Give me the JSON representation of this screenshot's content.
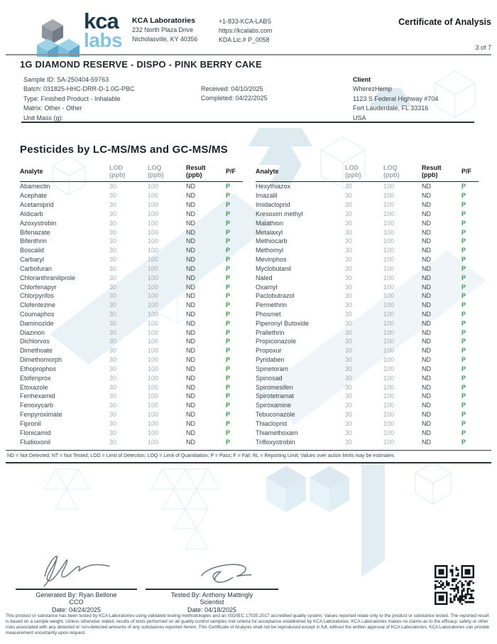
{
  "header": {
    "logo_text_top": "kca",
    "logo_text_bottom": "labs",
    "company_name": "KCA Laboratories",
    "address_line1": "232 North Plaza Drive",
    "address_line2": "Nicholasville, KY 40356",
    "phone": "+1-833-KCA-LABS",
    "website": "https://kcalabs.com",
    "license": "KDA Lic.# P_0058",
    "document_title": "Certificate of Analysis",
    "page_label": "3 of 7"
  },
  "product_title": "1G DIAMOND RESERVE - DISPO - PINK BERRY CAKE",
  "sample_info": {
    "sample_id": "Sample ID: SA-250404-59763",
    "batch": "Batch: 031825-HHC-DRR-D-1.0G-PBC",
    "type": "Type: Finished Product - Inhalable",
    "matrix": "Matrix: Other - Other",
    "unit_mass": "Unit Mass (g):",
    "received": "Received: 04/10/2025",
    "completed": "Completed: 04/22/2025"
  },
  "client": {
    "label": "Client",
    "name": "WherezHemp",
    "address_line1": "1123 S Federal Highway #704",
    "address_line2": "Fort Lauderdale, FL 33316",
    "country": "USA"
  },
  "section_title": "Pesticides by LC-MS/MS and GC-MS/MS",
  "table": {
    "headers": {
      "analyte": "Analyte",
      "lod": "LOD",
      "loq": "LOQ",
      "result": "Result",
      "unit": "(ppb)",
      "pf": "P/F"
    },
    "left_rows": [
      [
        "Abamectin",
        "30",
        "100",
        "ND",
        "P"
      ],
      [
        "Acephate",
        "30",
        "100",
        "ND",
        "P"
      ],
      [
        "Acetamiprid",
        "30",
        "100",
        "ND",
        "P"
      ],
      [
        "Aldicarb",
        "30",
        "100",
        "ND",
        "P"
      ],
      [
        "Azoxystrobin",
        "30",
        "100",
        "ND",
        "P"
      ],
      [
        "Bifenazate",
        "30",
        "100",
        "ND",
        "P"
      ],
      [
        "Bifenthrin",
        "30",
        "100",
        "ND",
        "P"
      ],
      [
        "Boscalid",
        "30",
        "100",
        "ND",
        "P"
      ],
      [
        "Carbaryl",
        "30",
        "100",
        "ND",
        "P"
      ],
      [
        "Carbofuran",
        "30",
        "100",
        "ND",
        "P"
      ],
      [
        "Chloranthraniliprole",
        "30",
        "100",
        "ND",
        "P"
      ],
      [
        "Chlorfenapyr",
        "30",
        "100",
        "ND",
        "P"
      ],
      [
        "Chlorpyrifos",
        "30",
        "100",
        "ND",
        "P"
      ],
      [
        "Clofentezine",
        "30",
        "100",
        "ND",
        "P"
      ],
      [
        "Coumaphos",
        "30",
        "100",
        "ND",
        "P"
      ],
      [
        "Daminozide",
        "30",
        "100",
        "ND",
        "P"
      ],
      [
        "Diazinon",
        "30",
        "100",
        "ND",
        "P"
      ],
      [
        "Dichlorvos",
        "30",
        "100",
        "ND",
        "P"
      ],
      [
        "Dimethoate",
        "30",
        "100",
        "ND",
        "P"
      ],
      [
        "Dimethomorph",
        "30",
        "100",
        "ND",
        "P"
      ],
      [
        "Ethoprophos",
        "30",
        "100",
        "ND",
        "P"
      ],
      [
        "Etofenprox",
        "30",
        "100",
        "ND",
        "P"
      ],
      [
        "Etoxazole",
        "30",
        "100",
        "ND",
        "P"
      ],
      [
        "Fenhexamid",
        "30",
        "100",
        "ND",
        "P"
      ],
      [
        "Fenoxycarb",
        "30",
        "100",
        "ND",
        "P"
      ],
      [
        "Fenpyroximate",
        "30",
        "100",
        "ND",
        "P"
      ],
      [
        "Fipronil",
        "30",
        "100",
        "ND",
        "P"
      ],
      [
        "Flonicamid",
        "30",
        "100",
        "ND",
        "P"
      ],
      [
        "Fludioxonil",
        "30",
        "100",
        "ND",
        "P"
      ]
    ],
    "right_rows": [
      [
        "Hexythiazox",
        "30",
        "100",
        "ND",
        "P"
      ],
      [
        "Imazalil",
        "30",
        "100",
        "ND",
        "P"
      ],
      [
        "Imidacloprid",
        "30",
        "100",
        "ND",
        "P"
      ],
      [
        "Kresoxim methyl",
        "30",
        "100",
        "ND",
        "P"
      ],
      [
        "Malathion",
        "30",
        "100",
        "ND",
        "P"
      ],
      [
        "Metalaxyl",
        "30",
        "100",
        "ND",
        "P"
      ],
      [
        "Methiocarb",
        "30",
        "100",
        "ND",
        "P"
      ],
      [
        "Methomyl",
        "30",
        "100",
        "ND",
        "P"
      ],
      [
        "Mevinphos",
        "30",
        "100",
        "ND",
        "P"
      ],
      [
        "Myclobutanil",
        "30",
        "100",
        "ND",
        "P"
      ],
      [
        "Naled",
        "30",
        "100",
        "ND",
        "P"
      ],
      [
        "Oxamyl",
        "30",
        "100",
        "ND",
        "P"
      ],
      [
        "Paclobutrazol",
        "30",
        "100",
        "ND",
        "P"
      ],
      [
        "Permethrin",
        "30",
        "100",
        "ND",
        "P"
      ],
      [
        "Phosmet",
        "30",
        "100",
        "ND",
        "P"
      ],
      [
        "Piperonyl Butoxide",
        "30",
        "100",
        "ND",
        "P"
      ],
      [
        "Prallethrin",
        "30",
        "100",
        "ND",
        "P"
      ],
      [
        "Propiconazole",
        "30",
        "100",
        "ND",
        "P"
      ],
      [
        "Propoxur",
        "30",
        "100",
        "ND",
        "P"
      ],
      [
        "Pyridaben",
        "30",
        "100",
        "ND",
        "P"
      ],
      [
        "Spinetoram",
        "30",
        "100",
        "ND",
        "P"
      ],
      [
        "Spinosad",
        "30",
        "100",
        "ND",
        "P"
      ],
      [
        "Spiromesifen",
        "30",
        "100",
        "ND",
        "P"
      ],
      [
        "Spirotetramat",
        "30",
        "100",
        "ND",
        "P"
      ],
      [
        "Spiroxamine",
        "30",
        "100",
        "ND",
        "P"
      ],
      [
        "Tebuconazole",
        "30",
        "100",
        "ND",
        "P"
      ],
      [
        "Thiacloprid",
        "30",
        "100",
        "ND",
        "P"
      ],
      [
        "Thiamethoxam",
        "30",
        "100",
        "ND",
        "P"
      ],
      [
        "Trifloxystrobin",
        "30",
        "100",
        "ND",
        "P"
      ]
    ]
  },
  "footnote": "ND = Not Detected; NT = Not Tested; LOD = Limit of Detection; LOQ = Limit of Quantitation; P = Pass; F = Fail; RL = Reporting Limit; Values over action limits may be estimates",
  "signatures": {
    "generated": {
      "by": "Generated By: Ryan Bellone",
      "role": "CCO",
      "date": "Date: 04/24/2025"
    },
    "tested": {
      "by": "Tested By: Anthony Mattingly",
      "role": "Scientist",
      "date": "Date: 04/18/2025"
    }
  },
  "disclaimer": "This product or substance has been tested by KCA Laboratories using validated testing methodologies and an ISO/IEC 17025:2017 accredited quality system. Values reported relate only to the product or substance tested. The reported result is based on a sample weight. Unless otherwise stated, results of tests performed on all quality control samples met criteria for acceptance established by KCA Laboratories. KCA Laboratories makes no claims as to the efficacy, safety or other risks associated with any detected or non-detected amounts of any substances reported herein. This Certificate of Analysis shall not be reproduced except in full, without the written approval of KCA Laboratories. KCA Laboratories can provide measurement uncertainty upon request.",
  "colors": {
    "brand_navy": "#1d3a4c",
    "brand_light_blue": "#85c3dc",
    "pass_green": "#3a9a47",
    "muted_text": "#a3abb0",
    "watermark_blue": "#dcebf2"
  }
}
